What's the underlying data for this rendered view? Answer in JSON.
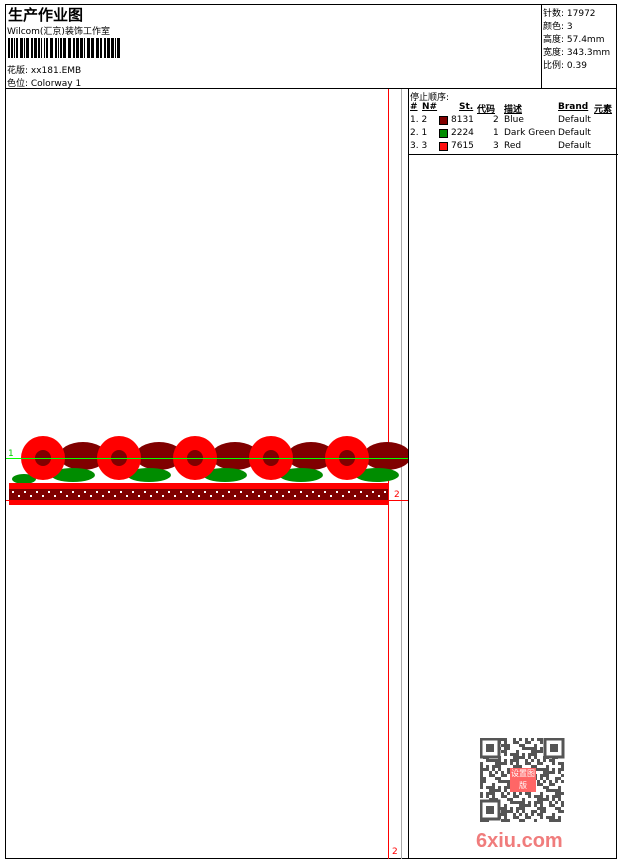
{
  "header": {
    "title": "生产作业图",
    "company": "Wilcom(汇京)装饰工作室",
    "design_label": "花版: xx181.EMB",
    "colorway_label": "色位: Colorway 1"
  },
  "info": [
    {
      "label": "针数: 17972"
    },
    {
      "label": "颜色: 3"
    },
    {
      "label": "高度: 57.4mm"
    },
    {
      "label": "宽度: 343.3mm"
    },
    {
      "label": "比例: 0.39"
    }
  ],
  "stop_sequence": {
    "title": "停止顺序:",
    "columns": [
      "#",
      "N#",
      "St.",
      "代码",
      "描述",
      "Brand",
      "元素"
    ],
    "rows": [
      {
        "seq": "1. 2",
        "code": "8131",
        "num": "2",
        "desc": "Blue",
        "brand": "Default",
        "color": "#800000"
      },
      {
        "seq": "2. 1",
        "code": "2224",
        "num": "1",
        "desc": "Dark Green",
        "brand": "Default",
        "color": "#008c00"
      },
      {
        "seq": "3. 3",
        "code": "7615",
        "num": "3",
        "desc": "Red",
        "brand": "Default",
        "color": "#ff1010"
      }
    ]
  },
  "markers": {
    "green_line": "1",
    "red_line": "2",
    "bottom": "2"
  },
  "watermark": {
    "text": "6xiu.com",
    "stamp": "设置图版"
  },
  "colors": {
    "red": "#ff0000",
    "dark_red": "#800000",
    "green": "#008c00"
  }
}
